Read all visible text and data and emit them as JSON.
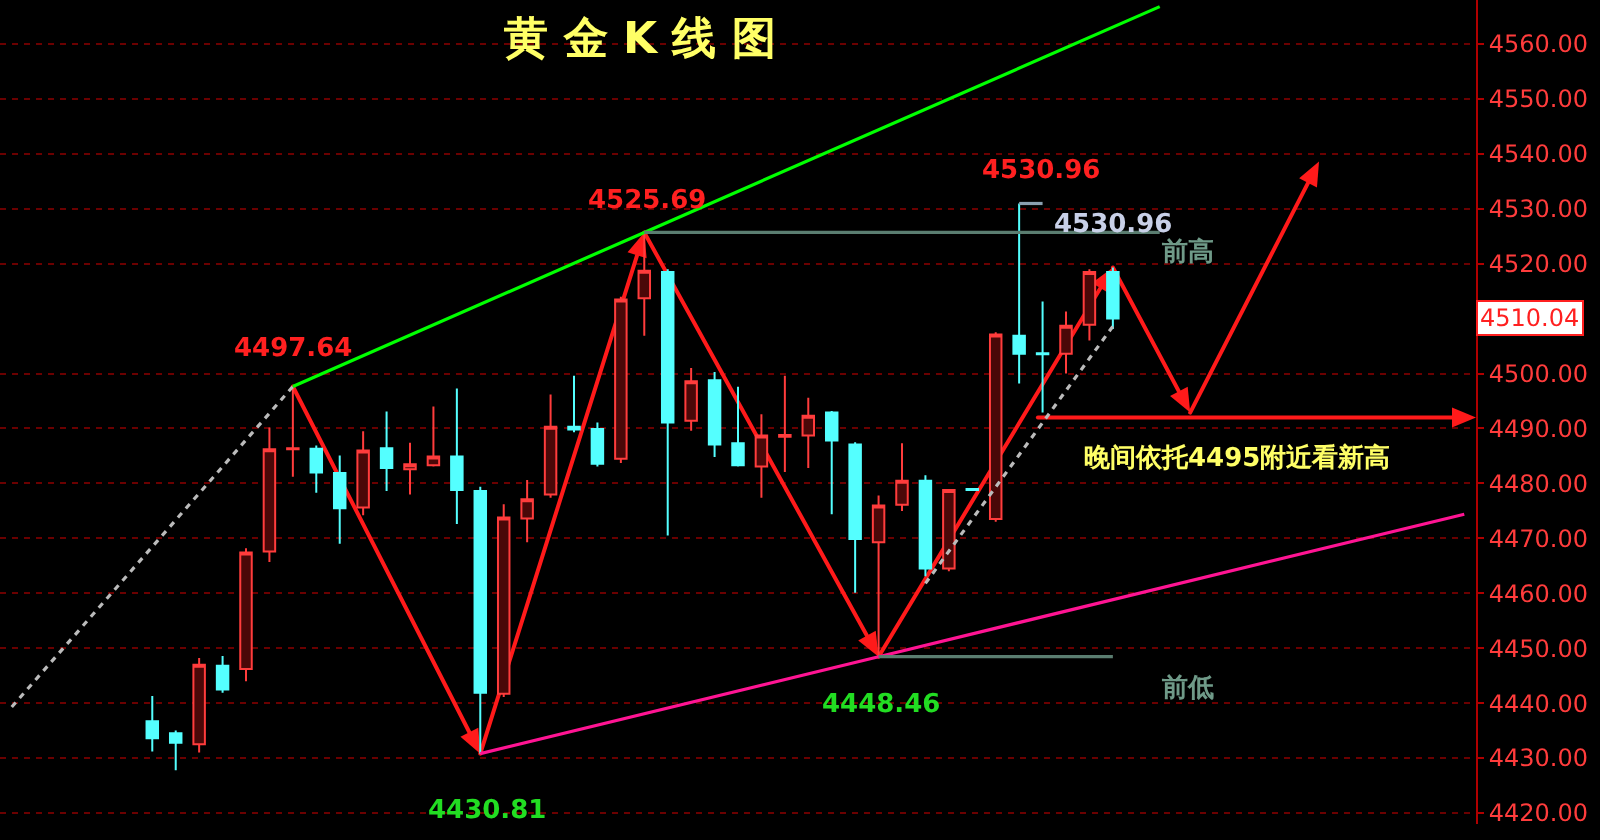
{
  "chart_data": {
    "type": "candlestick",
    "title": "黄 金 K 线 图",
    "categories": [
      null,
      null,
      null,
      null,
      null,
      null,
      null,
      null,
      null,
      null,
      null,
      null,
      null,
      null,
      null,
      null,
      null,
      null,
      null,
      null,
      null,
      null,
      null,
      null,
      null,
      null,
      null,
      null,
      null,
      null,
      null,
      null,
      null,
      null,
      null,
      null,
      null,
      null,
      null,
      null,
      null,
      null,
      null,
      null,
      null,
      null,
      null,
      null,
      null,
      null,
      null,
      null,
      null,
      null,
      null,
      null,
      null,
      null,
      null,
      null,
      null,
      null,
      null
    ],
    "ohlc": [
      null,
      null,
      null,
      null,
      null,
      null,
      [
        4436.7,
        4441.3,
        4431.2,
        4433.6
      ],
      [
        4434.5,
        4435.0,
        4427.8,
        4432.8
      ],
      [
        4432.5,
        4448.2,
        4431.0,
        4447.0
      ],
      [
        4446.8,
        4448.6,
        4441.9,
        4442.5
      ],
      [
        4446.2,
        4468.2,
        4444.0,
        4467.4
      ],
      [
        4467.6,
        4490.2,
        4465.7,
        4486.2
      ],
      [
        4486.2,
        4497.64,
        4481.2,
        4486.4
      ],
      [
        4486.3,
        4486.9,
        4478.3,
        4482.0
      ],
      [
        4481.9,
        4485.1,
        4469.0,
        4475.5
      ],
      [
        4475.6,
        4489.5,
        4474.2,
        4486.0
      ],
      [
        4486.4,
        4493.1,
        4478.6,
        4482.8
      ],
      [
        4482.6,
        4487.4,
        4478.0,
        4483.5
      ],
      [
        4483.3,
        4494.0,
        4483.1,
        4484.9
      ],
      [
        4484.9,
        4497.3,
        4472.6,
        4478.8
      ],
      [
        4478.6,
        4479.4,
        4430.81,
        4441.9
      ],
      [
        4441.7,
        4476.2,
        4441.1,
        4473.8
      ],
      [
        4473.6,
        4480.6,
        4469.3,
        4477.1
      ],
      [
        4478.0,
        4496.2,
        4477.4,
        4490.3
      ],
      [
        4490.3,
        4499.6,
        4489.3,
        4489.8
      ],
      [
        4489.9,
        4491.1,
        4483.1,
        4483.6
      ],
      [
        4484.5,
        4514.0,
        4483.7,
        4513.5
      ],
      [
        4513.7,
        4525.69,
        4506.9,
        4518.7
      ],
      [
        4518.5,
        4519.0,
        4470.5,
        4491.1
      ],
      [
        4491.4,
        4501.0,
        4489.6,
        4498.6
      ],
      [
        4498.8,
        4500.3,
        4484.8,
        4487.1
      ],
      [
        4487.3,
        4497.6,
        4483.1,
        4483.3
      ],
      [
        4483.1,
        4492.6,
        4477.4,
        4488.7
      ],
      [
        4488.5,
        4499.6,
        4482.1,
        4488.8
      ],
      [
        4488.7,
        4495.6,
        4482.8,
        4492.3
      ],
      [
        4492.9,
        4493.2,
        4474.4,
        4487.8
      ],
      [
        4487.1,
        4487.5,
        4460.1,
        4469.9
      ],
      [
        4469.3,
        4477.8,
        4448.46,
        4476.0
      ],
      [
        4476.1,
        4487.3,
        4475.0,
        4480.5
      ],
      [
        4480.5,
        4481.5,
        4463.1,
        4464.5
      ],
      [
        4464.5,
        4479.0,
        4464.0,
        4478.8
      ],
      [
        4479.0,
        4479.1,
        4478.6,
        4478.8
      ],
      [
        4473.5,
        4507.5,
        4473.0,
        4507.1
      ],
      [
        4506.9,
        4530.96,
        4498.2,
        4503.6
      ],
      [
        4503.7,
        4513.1,
        4492.9,
        4503.5
      ],
      [
        4503.6,
        4511.3,
        4500.0,
        4508.7
      ],
      [
        4508.9,
        4519.0,
        4506.0,
        4518.5
      ],
      [
        4518.5,
        4519.3,
        4508.1,
        4510.04
      ],
      null,
      null,
      null,
      null,
      null,
      null,
      null,
      null,
      null,
      null,
      null,
      null,
      null,
      null,
      null
    ],
    "series": [
      {
        "type": "line",
        "color": "#bbbbbb",
        "line_style": "dotted",
        "values": [
          4439.3,
          null,
          null,
          null,
          null,
          null,
          null,
          null,
          null,
          null,
          null,
          null,
          4497.64,
          null,
          null,
          null,
          null,
          null,
          null,
          null,
          null,
          null,
          null,
          null,
          null,
          null,
          null,
          null,
          null,
          null,
          null,
          null,
          null,
          null,
          null,
          null,
          null,
          null,
          null,
          null,
          null,
          null,
          null,
          null,
          null,
          null,
          null,
          null,
          null,
          null,
          null,
          null,
          null,
          null,
          null,
          null,
          null,
          null,
          null,
          null,
          null,
          null,
          null
        ]
      },
      {
        "type": "line",
        "color": "#bbbbbb",
        "line_style": "dotted",
        "values": [
          null,
          null,
          null,
          null,
          null,
          null,
          null,
          null,
          null,
          null,
          null,
          null,
          null,
          null,
          null,
          null,
          null,
          null,
          null,
          null,
          null,
          null,
          null,
          null,
          null,
          null,
          null,
          null,
          null,
          null,
          null,
          null,
          null,
          null,
          null,
          null,
          null,
          null,
          null,
          4461.8,
          null,
          null,
          null,
          null,
          null,
          null,
          null,
          4508.6,
          null,
          null,
          null,
          null,
          null,
          null,
          null,
          null,
          null,
          null,
          null,
          null,
          null,
          null,
          null
        ]
      },
      {
        "type": "line",
        "color": "#00ff00",
        "line_style": "solid",
        "values": [
          null,
          null,
          null,
          null,
          null,
          null,
          null,
          null,
          null,
          null,
          null,
          null,
          4497.64,
          null,
          null,
          null,
          null,
          null,
          null,
          null,
          null,
          null,
          null,
          null,
          null,
          null,
          null,
          4525.69,
          null,
          null,
          null,
          null,
          null,
          null,
          null,
          null,
          null,
          null,
          null,
          null,
          null,
          null,
          null,
          null,
          null,
          null,
          null,
          null,
          null,
          4566.8,
          null,
          null,
          null,
          null,
          null,
          null,
          null,
          null,
          null,
          null,
          null,
          null,
          null
        ]
      },
      {
        "type": "line",
        "color": "#ff1493",
        "line_style": "solid",
        "values": [
          null,
          null,
          null,
          null,
          null,
          null,
          null,
          null,
          null,
          null,
          null,
          null,
          null,
          null,
          null,
          null,
          null,
          null,
          null,
          null,
          4430.81,
          null,
          null,
          null,
          null,
          null,
          null,
          null,
          null,
          null,
          null,
          null,
          null,
          null,
          null,
          null,
          null,
          4448.46,
          null,
          null,
          null,
          null,
          null,
          null,
          null,
          null,
          null,
          null,
          null,
          null,
          null,
          null,
          null,
          null,
          null,
          null,
          null,
          null,
          null,
          null,
          null,
          null,
          4474.4
        ]
      },
      {
        "type": "line",
        "color": "#5a7d70",
        "line_style": "solid",
        "values": [
          null,
          null,
          null,
          null,
          null,
          null,
          null,
          null,
          null,
          null,
          null,
          null,
          null,
          null,
          null,
          null,
          null,
          null,
          null,
          null,
          null,
          null,
          null,
          null,
          null,
          null,
          null,
          4525.69,
          null,
          null,
          null,
          null,
          null,
          null,
          null,
          null,
          null,
          null,
          null,
          null,
          null,
          null,
          null,
          null,
          null,
          null,
          null,
          null,
          null,
          4525.69,
          null,
          null,
          null,
          null,
          null,
          null,
          null,
          null,
          null,
          null,
          null,
          null,
          null
        ]
      },
      {
        "type": "line",
        "color": "#5a7d70",
        "line_style": "solid",
        "values": [
          null,
          null,
          null,
          null,
          null,
          null,
          null,
          null,
          null,
          null,
          null,
          null,
          null,
          null,
          null,
          null,
          null,
          null,
          null,
          null,
          null,
          null,
          null,
          null,
          null,
          null,
          null,
          null,
          null,
          null,
          null,
          null,
          null,
          null,
          null,
          null,
          null,
          4448.46,
          null,
          null,
          null,
          null,
          null,
          null,
          null,
          null,
          null,
          4448.46,
          null,
          null,
          null,
          null,
          null,
          null,
          null,
          null,
          null,
          null,
          null,
          null,
          null,
          null,
          null
        ]
      },
      {
        "type": "line",
        "color": "#8aa0b0",
        "line_style": "solid",
        "values": [
          null,
          null,
          null,
          null,
          null,
          null,
          null,
          null,
          null,
          null,
          null,
          null,
          null,
          null,
          null,
          null,
          null,
          null,
          null,
          null,
          null,
          null,
          null,
          null,
          null,
          null,
          null,
          null,
          null,
          null,
          null,
          null,
          null,
          null,
          null,
          null,
          null,
          null,
          null,
          null,
          null,
          null,
          null,
          4530.96,
          4530.96,
          null,
          null,
          null,
          null,
          null,
          null,
          null,
          null,
          null,
          null,
          null,
          null,
          null,
          null,
          null,
          null,
          null,
          null
        ]
      }
    ],
    "ylim": [
      4418,
      4568
    ],
    "yticks": [
      {
        "value": 4420,
        "label": "4420.00"
      },
      {
        "value": 4430,
        "label": "4430.00"
      },
      {
        "value": 4440,
        "label": "4440.00"
      },
      {
        "value": 4450,
        "label": "4450.00"
      },
      {
        "value": 4460,
        "label": "4460.00"
      },
      {
        "value": 4470,
        "label": "4470.00"
      },
      {
        "value": 4480,
        "label": "4480.00"
      },
      {
        "value": 4490,
        "label": "4490.00"
      },
      {
        "value": 4500,
        "label": "4500.00"
      },
      {
        "value": 4520,
        "label": "4520.00"
      },
      {
        "value": 4530,
        "label": "4530.00"
      },
      {
        "value": 4540,
        "label": "4540.00"
      },
      {
        "value": 4550,
        "label": "4550.00"
      },
      {
        "value": 4560,
        "label": "4560.00"
      }
    ],
    "tick_labels": "y",
    "grid": "y",
    "annotations": [
      "4497.64",
      "4525.69",
      "4530.96",
      "4530.96",
      "前高",
      "4430.81",
      "4448.46",
      "前低",
      "晚间依托4495附近看新高",
      "4510.04"
    ]
  }
}
